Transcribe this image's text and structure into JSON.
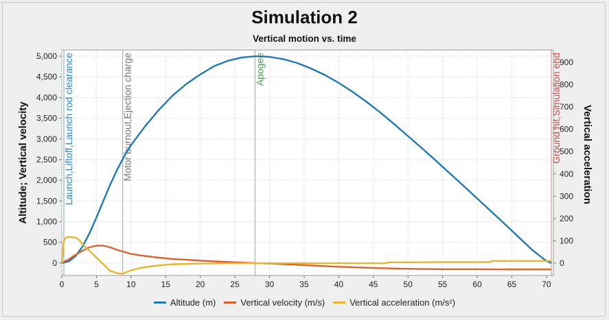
{
  "chart_data": {
    "type": "line",
    "title": "Simulation 2",
    "subtitle": "Vertical motion vs. time",
    "xlabel": "",
    "ylabel_left": "Altitude; Vertical velocity",
    "ylabel_right": "Vertical acceleration",
    "xlim": [
      0,
      71
    ],
    "ylim_left": [
      -300,
      5150
    ],
    "ylim_right": [
      -55,
      955
    ],
    "x_ticks": [
      0,
      5,
      10,
      15,
      20,
      25,
      30,
      35,
      40,
      45,
      50,
      55,
      60,
      65,
      70
    ],
    "y_left_ticks": [
      0,
      500,
      1000,
      1500,
      2000,
      2500,
      3000,
      3500,
      4000,
      4500,
      5000
    ],
    "y_left_tick_labels": [
      "0",
      "500",
      "1,000",
      "1,500",
      "2,000",
      "2,500",
      "3,000",
      "3,500",
      "4,000",
      "4,500",
      "5,000"
    ],
    "y_right_ticks": [
      0,
      100,
      200,
      300,
      400,
      500,
      600,
      700,
      800,
      900
    ],
    "y_right_tick_labels": [
      "0",
      "100",
      "200",
      "300",
      "400",
      "500",
      "600",
      "700",
      "800",
      "900"
    ],
    "grid": true,
    "legend_position": "bottom",
    "series": [
      {
        "name": "Altitude (m)",
        "axis": "left",
        "color": "#1f77b4",
        "x": [
          0,
          1,
          2,
          3,
          4,
          5,
          6,
          7,
          8,
          9,
          10,
          12,
          14,
          16,
          18,
          20,
          22,
          24,
          26,
          28,
          30,
          32,
          34,
          36,
          38,
          40,
          42,
          44,
          46,
          48,
          50,
          52,
          54,
          56,
          58,
          60,
          62,
          64,
          66,
          68,
          70,
          70.7
        ],
        "values": [
          0,
          40,
          170,
          400,
          720,
          1100,
          1500,
          1900,
          2260,
          2580,
          2850,
          3300,
          3700,
          4050,
          4330,
          4560,
          4760,
          4890,
          4970,
          5000,
          4985,
          4930,
          4835,
          4705,
          4545,
          4355,
          4140,
          3900,
          3640,
          3360,
          3070,
          2780,
          2480,
          2175,
          1870,
          1560,
          1250,
          940,
          625,
          310,
          50,
          0
        ]
      },
      {
        "name": "Vertical velocity (m/s)",
        "axis": "left",
        "color": "#d9622b",
        "x": [
          0,
          1,
          2,
          3,
          4,
          5,
          6,
          7,
          8,
          9,
          10,
          12,
          14,
          16,
          18,
          20,
          22,
          25,
          28,
          30,
          35,
          40,
          45,
          50,
          55,
          60,
          65,
          70,
          70.7
        ],
        "values": [
          0,
          90,
          200,
          300,
          380,
          420,
          420,
          380,
          320,
          270,
          220,
          170,
          130,
          100,
          80,
          60,
          40,
          20,
          0,
          -10,
          -50,
          -90,
          -120,
          -140,
          -150,
          -150,
          -155,
          -155,
          -155
        ]
      },
      {
        "name": "Vertical acceleration (m/s²)",
        "axis": "right",
        "color": "#e8b52c",
        "x": [
          0,
          0.3,
          0.6,
          1,
          2,
          2.5,
          3,
          4,
          5,
          6,
          7,
          8,
          8.8,
          9.5,
          10,
          11,
          12,
          14,
          16,
          20,
          25,
          30,
          35,
          40,
          45,
          47,
          47.1,
          50,
          55,
          60,
          61.9,
          62,
          65,
          70,
          70.7
        ],
        "values": [
          0,
          100,
          115,
          118,
          115,
          105,
          85,
          55,
          25,
          -5,
          -35,
          -45,
          -47,
          -38,
          -32,
          -24,
          -18,
          -10,
          -5,
          -2,
          0,
          0,
          0,
          0,
          0,
          0,
          4,
          4,
          5,
          5,
          5,
          10,
          10,
          10,
          10
        ]
      }
    ],
    "events": [
      {
        "label": "Launch,Liftoff,Launch rod clearance",
        "x": 0.3,
        "color": "#2a86c4"
      },
      {
        "label": "Motor burnout,Ejection charge",
        "x": 8.8,
        "color": "#777777"
      },
      {
        "label": "Apogee",
        "x": 27.9,
        "color": "#4a9a4a"
      },
      {
        "label": "Ground hit,Simulation end",
        "x": 70.7,
        "color": "#c0504d"
      }
    ]
  }
}
